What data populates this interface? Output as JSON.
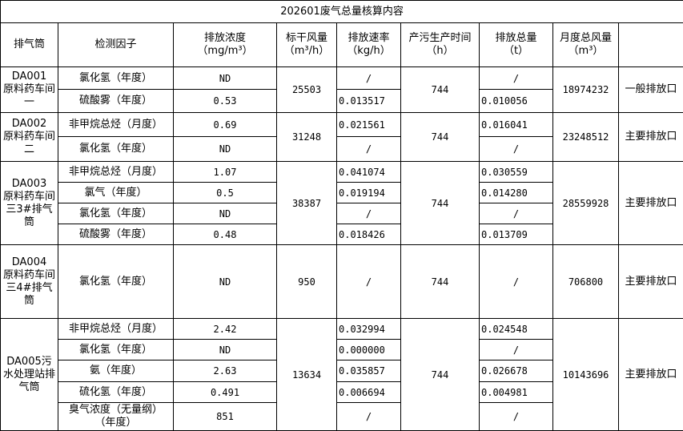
{
  "title": "202601废气总量核算内容",
  "headers": [
    "排气筒",
    "检测因子",
    "排放浓度\n（mg/m³）",
    "标干风量\n（m³/h）",
    "排放速率\n（kg/h）",
    "产污生产时间\n（h）",
    "排放总量\n（t）",
    "月度总风量\n（m³）",
    ""
  ],
  "groups": [
    {
      "outlet": "DA001\n原料药车间一",
      "flow": "25503",
      "hours": "744",
      "monthly_flow": "18974232",
      "type": "一般排放口",
      "rows": [
        {
          "factor": "氯化氢（年度）",
          "conc": "ND",
          "rate": "/",
          "total": "/"
        },
        {
          "factor": "硫酸雾（年度）",
          "conc": "0.53",
          "rate": "0.013517",
          "total": "0.010056"
        }
      ]
    },
    {
      "outlet": "DA002\n原料药车间二",
      "flow": "31248",
      "hours": "744",
      "monthly_flow": "23248512",
      "type": "主要排放口",
      "rows": [
        {
          "factor": "非甲烷总烃（月度）",
          "conc": "0.69",
          "rate": "0.021561",
          "total": "0.016041"
        },
        {
          "factor": "氯化氢（年度）",
          "conc": "ND",
          "rate": "/",
          "total": "/"
        }
      ]
    },
    {
      "outlet": "DA003\n原料药车间三3#排气筒",
      "flow": "38387",
      "hours": "744",
      "monthly_flow": "28559928",
      "type": "主要排放口",
      "rows": [
        {
          "factor": "非甲烷总烃（月度）",
          "conc": "1.07",
          "rate": "0.041074",
          "total": "0.030559"
        },
        {
          "factor": "氯气（年度）",
          "conc": "0.5",
          "rate": "0.019194",
          "total": "0.014280"
        },
        {
          "factor": "氯化氢（年度）",
          "conc": "ND",
          "rate": "/",
          "total": "/"
        },
        {
          "factor": "硫酸雾（年度）",
          "conc": "0.48",
          "rate": "0.018426",
          "total": "0.013709"
        }
      ]
    },
    {
      "outlet": "DA004\n原料药车间三4#排气筒",
      "flow": "950",
      "hours": "744",
      "monthly_flow": "706800",
      "type": "主要排放口",
      "rows": [
        {
          "factor": "氯化氢（年度）",
          "conc": "ND",
          "rate": "/",
          "total": "/"
        }
      ]
    },
    {
      "outlet": "DA005污水处理站排气筒",
      "flow": "13634",
      "hours": "744",
      "monthly_flow": "10143696",
      "type": "主要排放口",
      "rows": [
        {
          "factor": "非甲烷总烃（月度）",
          "conc": "2.42",
          "rate": "0.032994",
          "total": "0.024548"
        },
        {
          "factor": "氯化氢（年度）",
          "conc": "ND",
          "rate": "0.000000",
          "total": "/"
        },
        {
          "factor": "氨（年度）",
          "conc": "2.63",
          "rate": "0.035857",
          "total": "0.026678"
        },
        {
          "factor": "硫化氢（年度）",
          "conc": "0.491",
          "rate": "0.006694",
          "total": "0.004981"
        },
        {
          "factor": "臭气浓度（无量纲）（年度）",
          "conc": "851",
          "rate": "/",
          "total": "/"
        }
      ]
    }
  ]
}
